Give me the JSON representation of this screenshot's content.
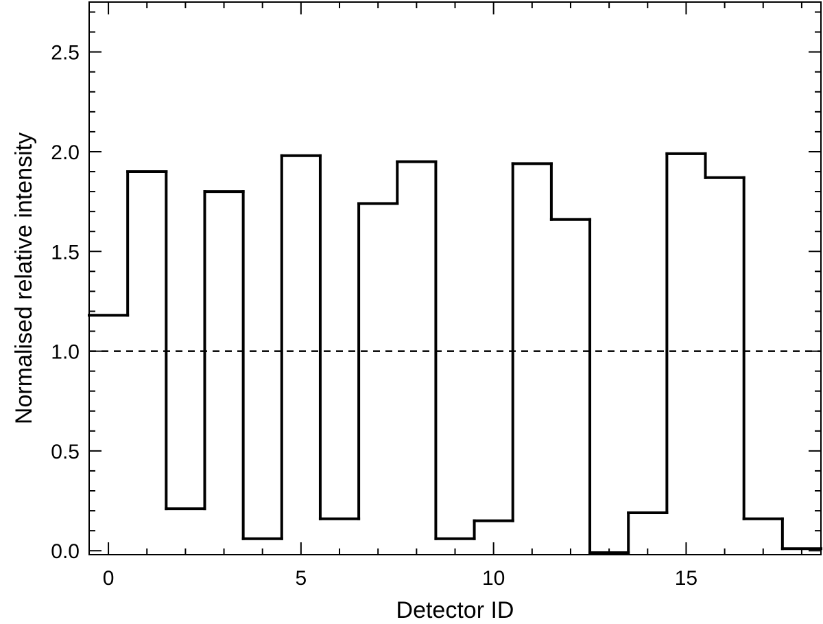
{
  "chart_data": {
    "type": "line",
    "style": "step",
    "title": "",
    "xlabel": "Detector ID",
    "ylabel": "Normalised relative intensity",
    "xlim": [
      -0.5,
      18.5
    ],
    "ylim": [
      -0.02,
      2.75
    ],
    "x_ticks": [
      0,
      5,
      10,
      15
    ],
    "x_tick_labels": [
      "0",
      "5",
      "10",
      "15"
    ],
    "x_minor_step": 1,
    "y_ticks": [
      0.0,
      0.5,
      1.0,
      1.5,
      2.0,
      2.5
    ],
    "y_tick_labels": [
      "0.0",
      "0.5",
      "1.0",
      "1.5",
      "2.0",
      "2.5"
    ],
    "y_minor_step": 0.1,
    "grid": false,
    "legend": "none",
    "series": [
      {
        "x": [
          0,
          1,
          2,
          3,
          4,
          5,
          6,
          7,
          8,
          9,
          10,
          11,
          12,
          13,
          14,
          15,
          16,
          17,
          18
        ],
        "values": [
          1.18,
          1.9,
          0.21,
          1.8,
          0.06,
          1.98,
          0.16,
          1.74,
          1.95,
          0.06,
          0.15,
          1.94,
          1.66,
          -0.01,
          0.19,
          1.99,
          1.87,
          0.16,
          0.01
        ],
        "color": "#000000",
        "line_style": "solid"
      }
    ],
    "reference_lines": [
      {
        "y": 1.0,
        "color": "#000000",
        "line_style": "dashed"
      }
    ]
  }
}
